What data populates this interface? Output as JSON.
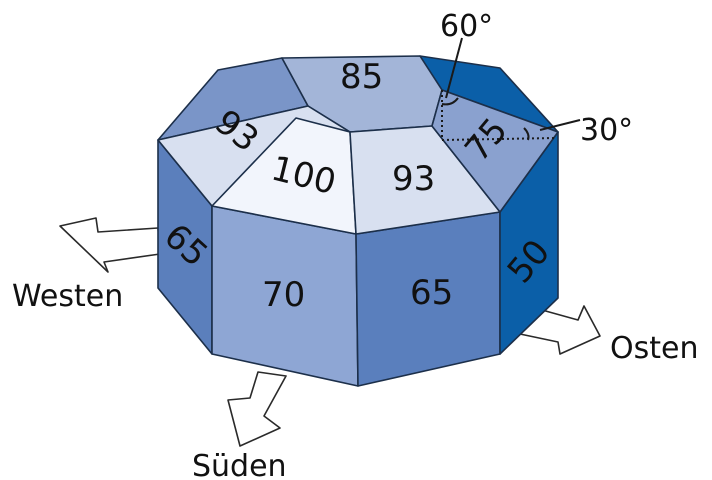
{
  "faces": {
    "top_back": {
      "value": "85",
      "color": "#a3b5d8"
    },
    "top_left": {
      "value": "93",
      "color": "#d8e0f0"
    },
    "top_front_left": {
      "value": "100",
      "color": "#f2f5fc"
    },
    "top_front_right": {
      "value": "93",
      "color": "#d8e0f0"
    },
    "top_right": {
      "value": "75",
      "color": "#8aa1cf"
    },
    "side_left": {
      "value": "65",
      "color": "#5b7fbc"
    },
    "side_front_left": {
      "value": "70",
      "color": "#8ea6d4"
    },
    "side_front_right": {
      "value": "65",
      "color": "#5a7fbd"
    },
    "side_right": {
      "value": "50",
      "color": "#0b5fa8"
    }
  },
  "colors": {
    "top_back_left": "#7a95c8",
    "top_back_right": "#0b5fa8",
    "side_far_left": "#4a6fb0",
    "side_far_right": "#0a56a0"
  },
  "directions": {
    "west": "Westen",
    "south": "Süden",
    "east": "Osten"
  },
  "angles": {
    "upper": "60°",
    "right": "30°"
  }
}
